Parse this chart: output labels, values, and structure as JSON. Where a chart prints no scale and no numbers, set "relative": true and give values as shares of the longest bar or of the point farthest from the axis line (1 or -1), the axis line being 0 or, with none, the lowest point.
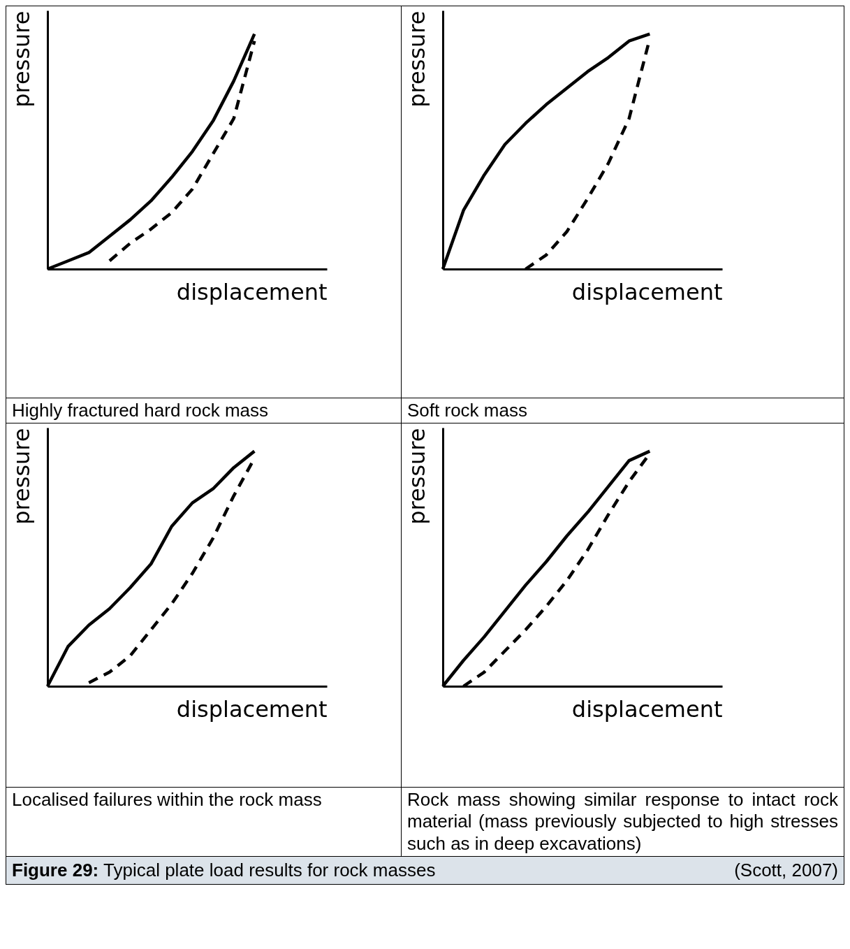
{
  "chart_data": [
    {
      "type": "line",
      "relative": true,
      "xlabel": "displacement",
      "ylabel": "pressure",
      "annotations": [
        "Highly fractured hard rock mass"
      ],
      "categories": [
        null,
        null,
        null,
        null,
        null,
        null,
        null,
        null,
        null,
        null,
        null
      ],
      "series": [
        {
          "color": "#000000",
          "line_style": "solid",
          "values": [
            0,
            0.035,
            0.07,
            0.14,
            0.21,
            0.29,
            0.39,
            0.5,
            0.63,
            0.8,
            1
          ]
        },
        {
          "color": "#000000",
          "line_style": "dashed",
          "values": [
            null,
            null,
            null,
            0.035,
            0.11,
            0.17,
            0.24,
            0.34,
            0.49,
            0.64,
            0.97
          ]
        }
      ]
    },
    {
      "type": "line",
      "relative": true,
      "xlabel": "displacement",
      "ylabel": "pressure",
      "annotations": [
        "Soft rock mass"
      ],
      "categories": [
        null,
        null,
        null,
        null,
        null,
        null,
        null,
        null,
        null,
        null,
        null
      ],
      "series": [
        {
          "color": "#000000",
          "line_style": "solid",
          "values": [
            0,
            0.25,
            0.4,
            0.53,
            0.62,
            0.7,
            0.77,
            0.84,
            0.9,
            0.97,
            1
          ]
        },
        {
          "color": "#000000",
          "line_style": "dashed",
          "values": [
            null,
            null,
            null,
            null,
            0,
            0.06,
            0.16,
            0.3,
            0.45,
            0.64,
            0.98
          ]
        }
      ]
    },
    {
      "type": "line",
      "relative": true,
      "xlabel": "displacement",
      "ylabel": "pressure",
      "annotations": [
        "Localised failures within the rock mass"
      ],
      "categories": [
        null,
        null,
        null,
        null,
        null,
        null,
        null,
        null,
        null,
        null,
        null
      ],
      "series": [
        {
          "color": "#000000",
          "line_style": "solid",
          "values": [
            0,
            0.17,
            0.26,
            0.33,
            0.42,
            0.52,
            0.68,
            0.78,
            0.84,
            0.93,
            1
          ]
        },
        {
          "color": "#000000",
          "line_style": "dashed",
          "values": [
            null,
            null,
            0.015,
            0.06,
            0.13,
            0.24,
            0.35,
            0.48,
            0.63,
            0.81,
            0.97
          ]
        }
      ]
    },
    {
      "type": "line",
      "relative": true,
      "xlabel": "displacement",
      "ylabel": "pressure",
      "annotations": [
        "Rock mass showing similar response to intact rock material (mass previously subjected to high stresses such as in deep excavations)",
        "Figure 29: Typical plate load results for rock masses",
        "(Scott, 2007)"
      ],
      "categories": [
        null,
        null,
        null,
        null,
        null,
        null,
        null,
        null,
        null,
        null,
        null
      ],
      "series": [
        {
          "color": "#000000",
          "line_style": "solid",
          "values": [
            0,
            0.11,
            0.21,
            0.32,
            0.43,
            0.53,
            0.64,
            0.74,
            0.85,
            0.96,
            1
          ]
        },
        {
          "color": "#000000",
          "line_style": "dashed",
          "values": [
            null,
            0,
            0.06,
            0.15,
            0.24,
            0.34,
            0.45,
            0.58,
            0.73,
            0.87,
            0.99
          ]
        }
      ]
    }
  ]
}
